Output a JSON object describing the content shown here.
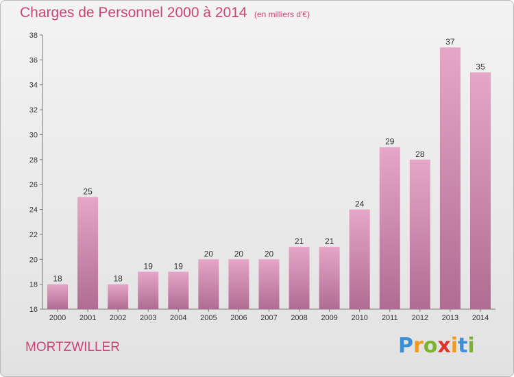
{
  "chart_data": {
    "type": "bar",
    "title": "Charges de Personnel 2000 à 2014",
    "subtitle": "(en milliers d'€)",
    "categories": [
      "2000",
      "2001",
      "2002",
      "2003",
      "2004",
      "2005",
      "2006",
      "2007",
      "2008",
      "2009",
      "2010",
      "2011",
      "2012",
      "2013",
      "2014"
    ],
    "values": [
      18,
      25,
      18,
      19,
      19,
      20,
      20,
      20,
      21,
      21,
      24,
      29,
      28,
      37,
      35
    ],
    "ylim": [
      16,
      38
    ],
    "yticks": [
      16,
      18,
      20,
      22,
      24,
      26,
      28,
      30,
      32,
      34,
      36,
      38
    ],
    "grid": false,
    "legend": "none",
    "bar_color": "#d98fb4"
  },
  "footer": {
    "commune": "MORTZWILLER",
    "logo_letters": [
      "P",
      "r",
      "o",
      "x",
      "i",
      "t",
      "i"
    ],
    "logo_colors": [
      "#3d8fd6",
      "#f19a1e",
      "#7ab42c",
      "#e0332b",
      "#f19a1e",
      "#3d8fd6",
      "#7ab42c"
    ]
  },
  "colors": {
    "accent": "#cc4477"
  }
}
